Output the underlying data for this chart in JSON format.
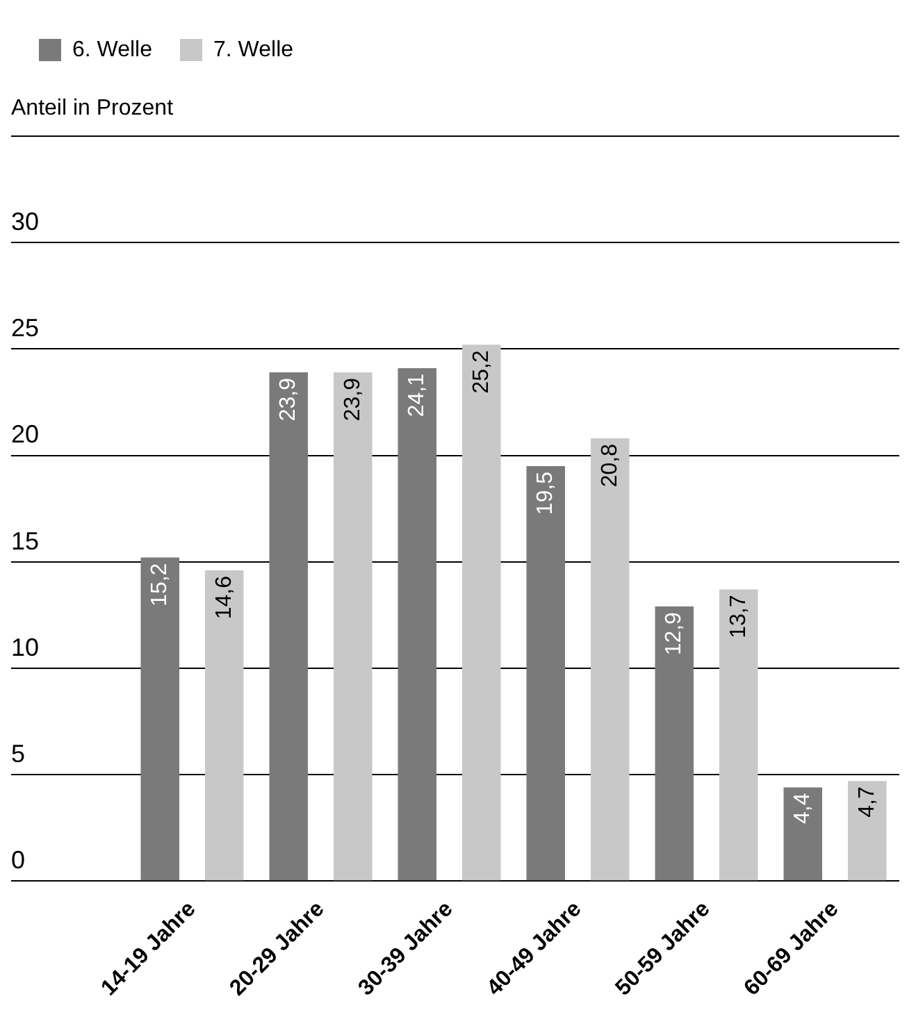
{
  "chart_data": {
    "type": "bar",
    "ylabel": "Anteil in Prozent",
    "categories": [
      "14-19 Jahre",
      "20-29 Jahre",
      "30-39 Jahre",
      "40-49 Jahre",
      "50-59 Jahre",
      "60-69 Jahre"
    ],
    "series": [
      {
        "name": "6. Welle",
        "color": "#7a7a7a",
        "values": [
          15.2,
          23.9,
          24.1,
          19.5,
          12.9,
          4.4
        ],
        "value_labels": [
          "15,2",
          "23,9",
          "24,1",
          "19,5",
          "12,9",
          "4,4"
        ]
      },
      {
        "name": "7. Welle",
        "color": "#c8c8c8",
        "values": [
          14.6,
          23.9,
          25.2,
          20.8,
          13.7,
          4.7
        ],
        "value_labels": [
          "14,6",
          "23,9",
          "25,2",
          "20,8",
          "13,7",
          "4,7"
        ]
      }
    ],
    "ylim": [
      0,
      35
    ],
    "yticks": [
      0,
      5,
      10,
      15,
      20,
      25,
      30,
      {
        "value": 35,
        "label": null
      }
    ],
    "grid": "y",
    "legend": "top left"
  }
}
